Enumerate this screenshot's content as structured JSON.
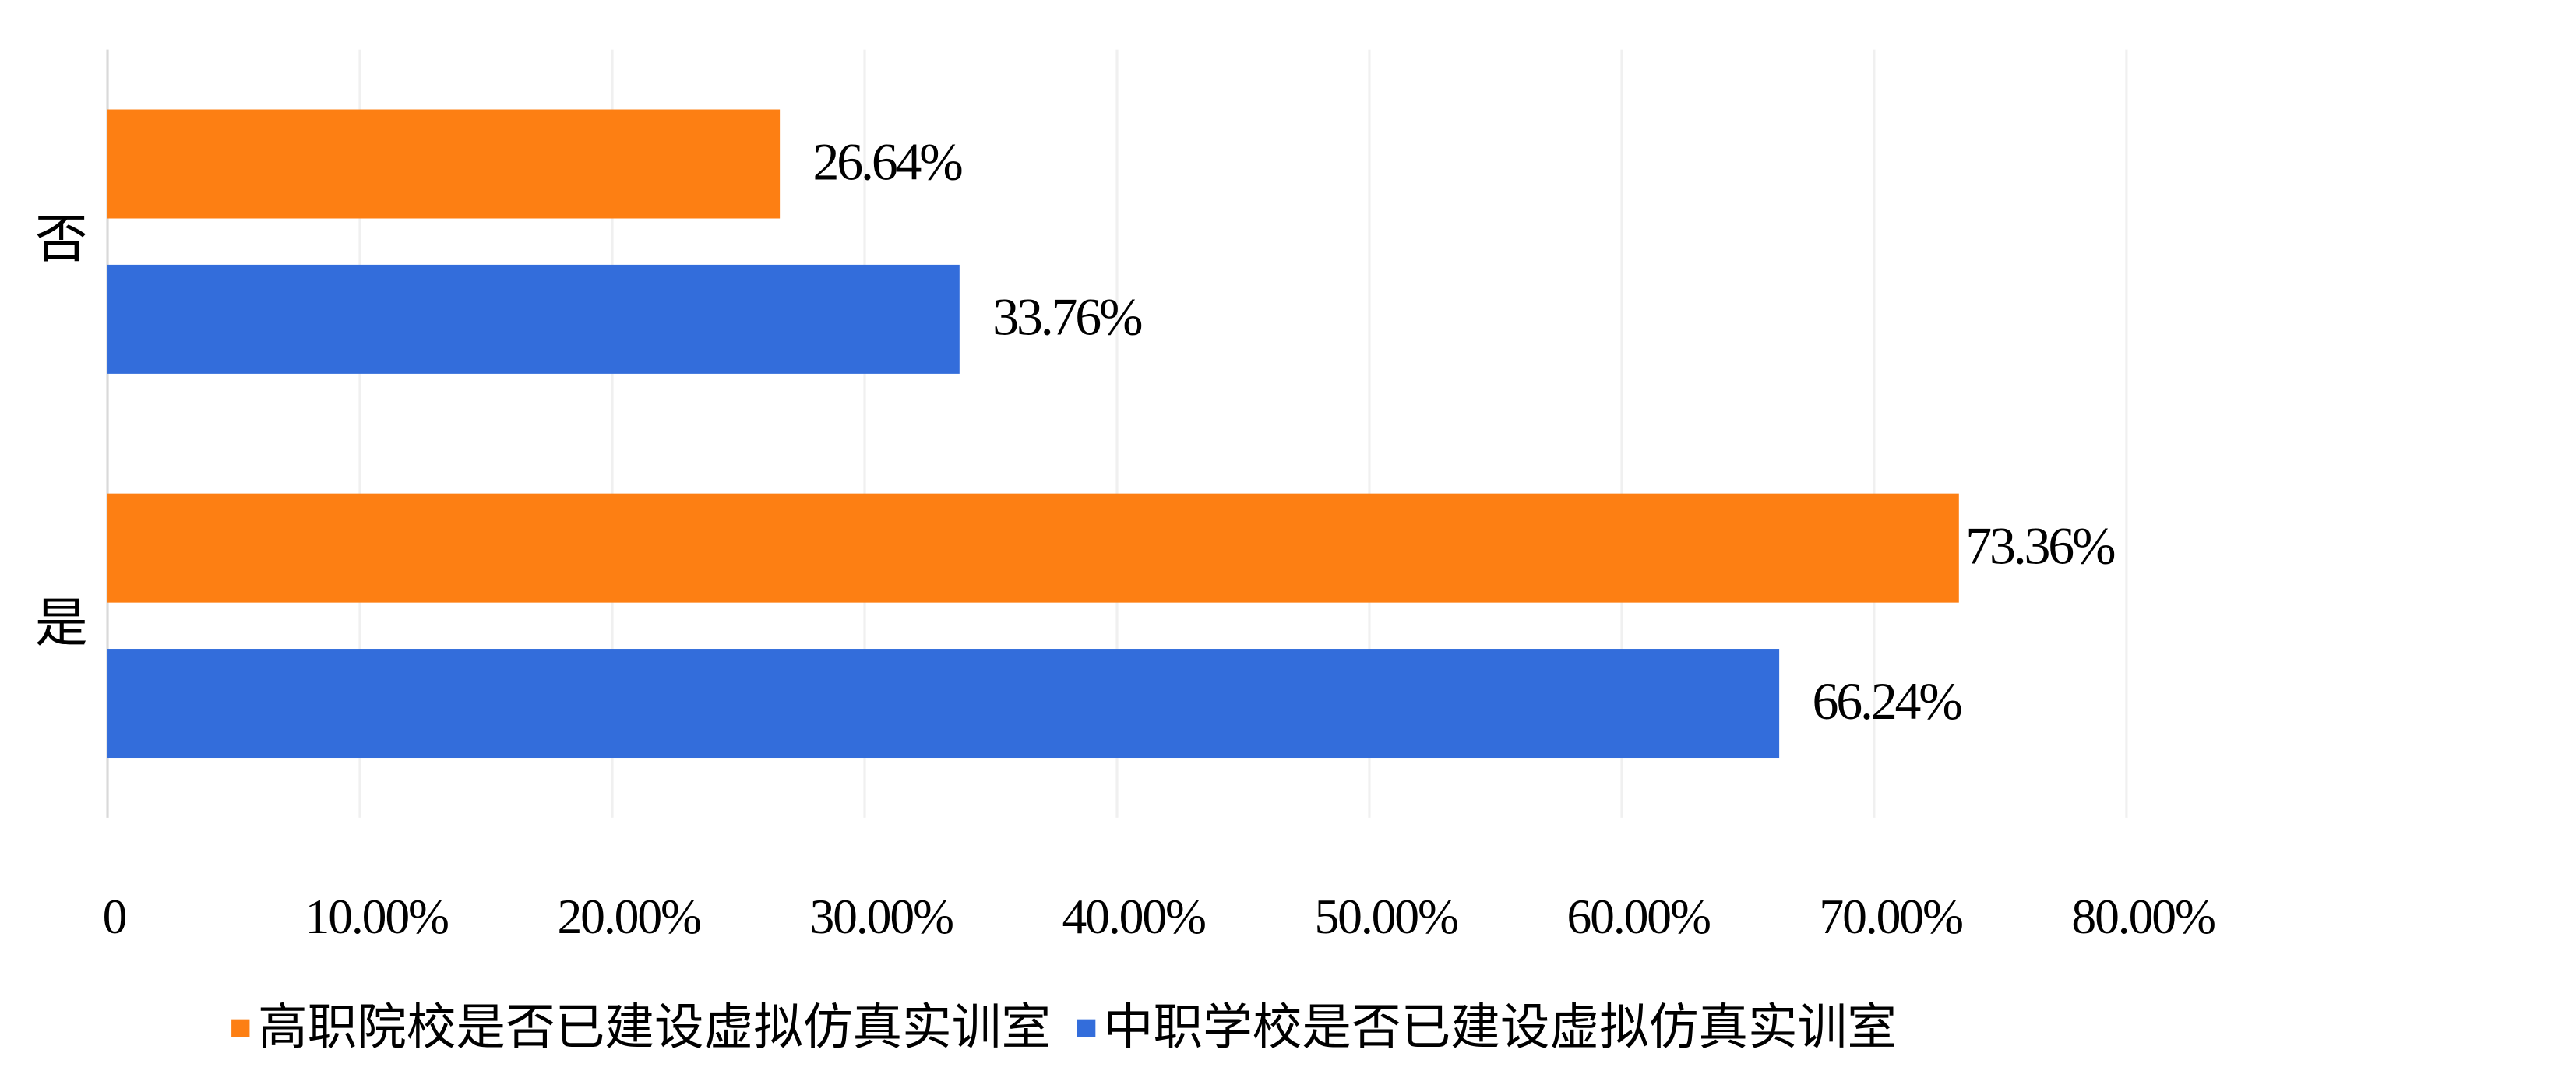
{
  "chart_data": {
    "type": "hbar",
    "categories": [
      "否",
      "是"
    ],
    "series": [
      {
        "name": "高职院校是否已建设虚拟仿真实训室",
        "color": "#fd7f13",
        "values": [
          26.64,
          73.36
        ],
        "value_labels": [
          "26.64%",
          "73.36%"
        ]
      },
      {
        "name": "中职学校是否已建设虚拟仿真实训室",
        "color": "#336ddb",
        "values": [
          33.76,
          66.24
        ],
        "value_labels": [
          "33.76%",
          "66.24%"
        ]
      }
    ],
    "xlim": [
      0,
      80
    ],
    "xticks": [
      0,
      {
        "value": 10,
        "label": "10.00%"
      },
      {
        "value": 20,
        "label": "20.00%"
      },
      {
        "value": 30,
        "label": "30.00%"
      },
      {
        "value": 40,
        "label": "40.00%"
      },
      {
        "value": 50,
        "label": "50.00%"
      },
      {
        "value": 60,
        "label": "60.00%"
      },
      {
        "value": 70,
        "label": "70.00%"
      },
      {
        "value": 80,
        "label": "80.00%"
      }
    ],
    "grid": true,
    "legend": "bottom"
  }
}
